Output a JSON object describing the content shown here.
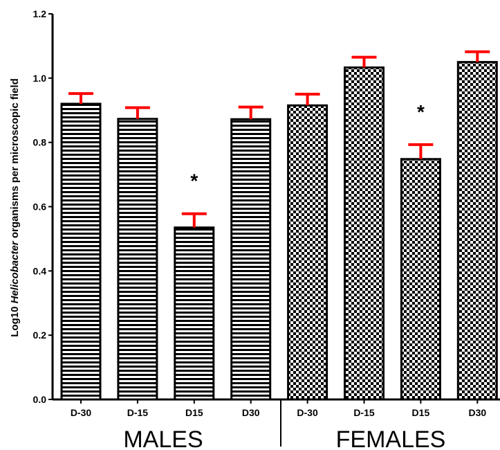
{
  "chart_data": {
    "type": "bar",
    "ylabel_parts": [
      "Log10 ",
      "Helicobacter",
      " organisms per microscopic field"
    ],
    "ylim": [
      0,
      1.2
    ],
    "yticks": [
      "0.0",
      "0.2",
      "0.4",
      "0.6",
      "0.8",
      "1.0",
      "1.2"
    ],
    "groups": [
      "MALES",
      "FEMALES"
    ],
    "categories": [
      "D-30",
      "D-15",
      "D15",
      "D30",
      "D-30",
      "D-15",
      "D15",
      "D30"
    ],
    "values": [
      0.92,
      0.873,
      0.535,
      0.872,
      0.915,
      1.033,
      0.748,
      1.05
    ],
    "error_upper": [
      0.952,
      0.908,
      0.578,
      0.91,
      0.95,
      1.065,
      0.793,
      1.082
    ],
    "group_index": [
      0,
      0,
      0,
      0,
      1,
      1,
      1,
      1
    ],
    "significance": [
      "",
      "",
      "*",
      "",
      "",
      "",
      "*",
      ""
    ],
    "patterns": [
      "horizontal-stripes",
      "checkerboard"
    ],
    "colors": {
      "error_bar": "#ff0000",
      "bar_stroke": "#000000"
    }
  }
}
